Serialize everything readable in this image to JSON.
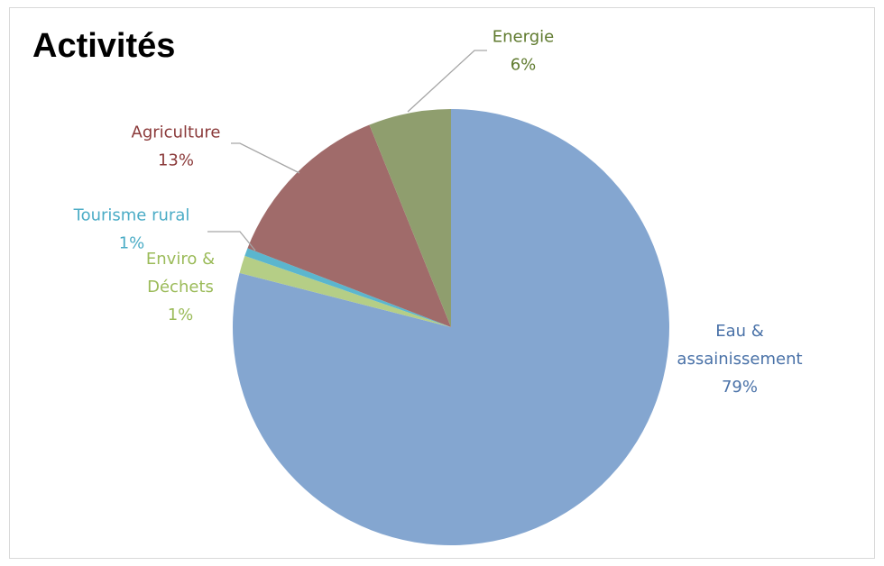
{
  "chart_data": {
    "type": "pie",
    "title": "Activités",
    "slices": [
      {
        "name": "Eau & assainissement",
        "value": 79,
        "label_lines": [
          "Eau &",
          "assainissement",
          "79%"
        ],
        "color": "#84A6D0",
        "text_color": "#4A72A8"
      },
      {
        "name": "Enviro & Déchets",
        "value": 1.3,
        "label_lines": [
          "Enviro &",
          "Déchets",
          "1%"
        ],
        "color": "#B5CE86",
        "text_color": "#9BBB59"
      },
      {
        "name": "Tourisme rural",
        "value": 0.6,
        "label_lines": [
          "Tourisme rural",
          "1%"
        ],
        "color": "#5BB6CE",
        "text_color": "#4BACC6"
      },
      {
        "name": "Agriculture",
        "value": 13,
        "label_lines": [
          "Agriculture",
          "13%"
        ],
        "color": "#A06B6A",
        "text_color": "#8B3A3A"
      },
      {
        "name": "Energie",
        "value": 6.1,
        "label_lines": [
          "Energie",
          "6%"
        ],
        "color": "#8F9E6E",
        "text_color": "#5F7A2E"
      }
    ],
    "start_angle": "top",
    "direction": "clockwise",
    "legend": "none",
    "leader_line_color": "#a6a6a6"
  }
}
